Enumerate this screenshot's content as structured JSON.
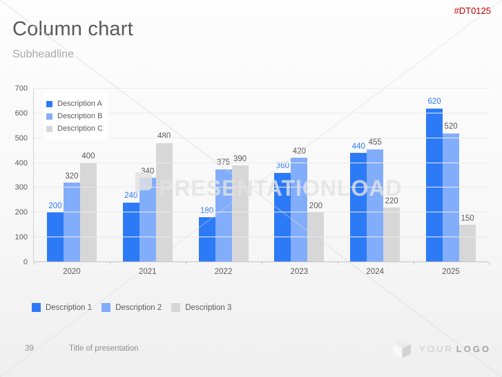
{
  "header": {
    "code": "#DT0125",
    "title": "Column chart",
    "subtitle": "Subheadline"
  },
  "watermark": {
    "text": "PRESENTATIONLOAD"
  },
  "chart_data": {
    "type": "bar",
    "title": "",
    "xlabel": "",
    "ylabel": "",
    "categories": [
      "2020",
      "2021",
      "2022",
      "2023",
      "2024",
      "2025"
    ],
    "series": [
      {
        "name": "Description A",
        "color": "#2d7af7",
        "label_color": "#2d7af7",
        "values": [
          200,
          240,
          180,
          360,
          440,
          620
        ]
      },
      {
        "name": "Description B",
        "color": "#82adfb",
        "label_color": "#595959",
        "values": [
          320,
          340,
          375,
          420,
          455,
          520
        ]
      },
      {
        "name": "Description C",
        "color": "#d7d7d7",
        "label_color": "#595959",
        "values": [
          400,
          480,
          390,
          200,
          220,
          150
        ]
      }
    ],
    "ylim": [
      0,
      700
    ],
    "yticks": [
      0,
      100,
      200,
      300,
      400,
      500,
      600,
      700
    ],
    "grid": true,
    "legend_position": "top-left-inside",
    "value_labels": true
  },
  "bottom_legend": {
    "items": [
      {
        "label": "Description 1",
        "color": "#2d7af7"
      },
      {
        "label": "Description 2",
        "color": "#82adfb"
      },
      {
        "label": "Description 3",
        "color": "#d7d7d7"
      }
    ]
  },
  "footer": {
    "page_number": "39",
    "presentation_title": "Title of presentation",
    "logo_light": "YOUR",
    "logo_bold": "LOGO"
  }
}
